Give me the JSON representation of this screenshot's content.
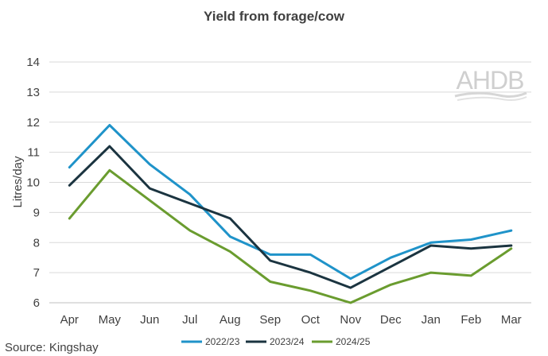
{
  "logo": {
    "text": "AHDB"
  },
  "source": "Source: Kingshay",
  "chart_data": {
    "type": "line",
    "title": "Yield from forage/cow",
    "xlabel": "",
    "ylabel": "Litres/day",
    "ylim": [
      6,
      14
    ],
    "yticks": [
      6,
      7,
      8,
      9,
      10,
      11,
      12,
      13,
      14
    ],
    "grid": true,
    "legend_position": "bottom",
    "categories": [
      "Apr",
      "May",
      "Jun",
      "Jul",
      "Aug",
      "Sep",
      "Oct",
      "Nov",
      "Dec",
      "Jan",
      "Feb",
      "Mar"
    ],
    "series": [
      {
        "name": "2022/23",
        "color": "#1f93c9",
        "values": [
          10.5,
          11.9,
          10.6,
          9.6,
          8.2,
          7.6,
          7.6,
          6.8,
          7.5,
          8.0,
          8.1,
          8.4
        ]
      },
      {
        "name": "2023/24",
        "color": "#1b3440",
        "values": [
          9.9,
          11.2,
          9.8,
          9.3,
          8.8,
          7.4,
          7.0,
          6.5,
          7.2,
          7.9,
          7.8,
          7.9
        ]
      },
      {
        "name": "2024/25",
        "color": "#6a9c2f",
        "values": [
          8.8,
          10.4,
          9.4,
          8.4,
          7.7,
          6.7,
          6.4,
          6.0,
          6.6,
          7.0,
          6.9,
          7.8
        ]
      }
    ]
  }
}
